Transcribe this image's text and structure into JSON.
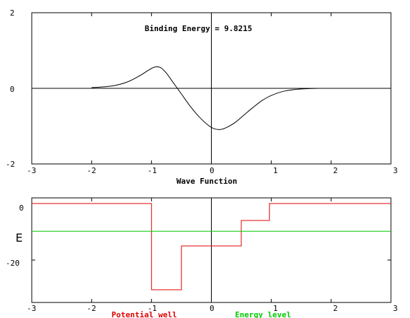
{
  "chart_data": [
    {
      "type": "line",
      "annotation_prefix": "Binding Energy = ",
      "binding_energy": "9.8215",
      "xlabel": "Wave Function",
      "xlim": [
        -3,
        3
      ],
      "ylim": [
        -2,
        2
      ],
      "x_ticks": [
        "-3",
        "-2",
        "-1",
        "0",
        "1",
        "2",
        "3"
      ],
      "y_ticks": [
        "2",
        "0",
        "-2"
      ],
      "series": [
        {
          "color": "#000000",
          "points": [
            [
              -2.0,
              0.02
            ],
            [
              -1.8,
              0.04
            ],
            [
              -1.6,
              0.08
            ],
            [
              -1.4,
              0.17
            ],
            [
              -1.2,
              0.33
            ],
            [
              -1.05,
              0.48
            ],
            [
              -0.95,
              0.56
            ],
            [
              -0.85,
              0.55
            ],
            [
              -0.75,
              0.4
            ],
            [
              -0.65,
              0.18
            ],
            [
              -0.5,
              -0.15
            ],
            [
              -0.35,
              -0.48
            ],
            [
              -0.2,
              -0.76
            ],
            [
              -0.05,
              -0.98
            ],
            [
              0.05,
              -1.07
            ],
            [
              0.15,
              -1.09
            ],
            [
              0.25,
              -1.04
            ],
            [
              0.4,
              -0.9
            ],
            [
              0.55,
              -0.7
            ],
            [
              0.7,
              -0.5
            ],
            [
              0.85,
              -0.32
            ],
            [
              1.0,
              -0.19
            ],
            [
              1.2,
              -0.08
            ],
            [
              1.4,
              -0.03
            ],
            [
              1.6,
              -0.01
            ],
            [
              1.8,
              0.0
            ]
          ]
        }
      ]
    },
    {
      "type": "line",
      "ylabel": "E",
      "xlim": [
        -3,
        3
      ],
      "ylim": [
        -35,
        2
      ],
      "x_ticks": [
        "-3",
        "-2",
        "-1",
        "0",
        "1",
        "2",
        "3"
      ],
      "y_ticks": [
        "0",
        "-20"
      ],
      "series": [
        {
          "name": "Potential well",
          "color": "#e00000",
          "points": [
            [
              -3,
              0
            ],
            [
              -1.0,
              0
            ],
            [
              -1.0,
              -30.5
            ],
            [
              -0.5,
              -30.5
            ],
            [
              -0.5,
              -15
            ],
            [
              0.5,
              -15
            ],
            [
              0.5,
              -6
            ],
            [
              0.97,
              -6
            ],
            [
              0.97,
              0
            ],
            [
              3,
              0
            ]
          ]
        },
        {
          "name": "Energy level",
          "color": "#00cc00",
          "points": [
            [
              -3,
              -9.8215
            ],
            [
              3,
              -9.8215
            ]
          ]
        }
      ]
    }
  ]
}
